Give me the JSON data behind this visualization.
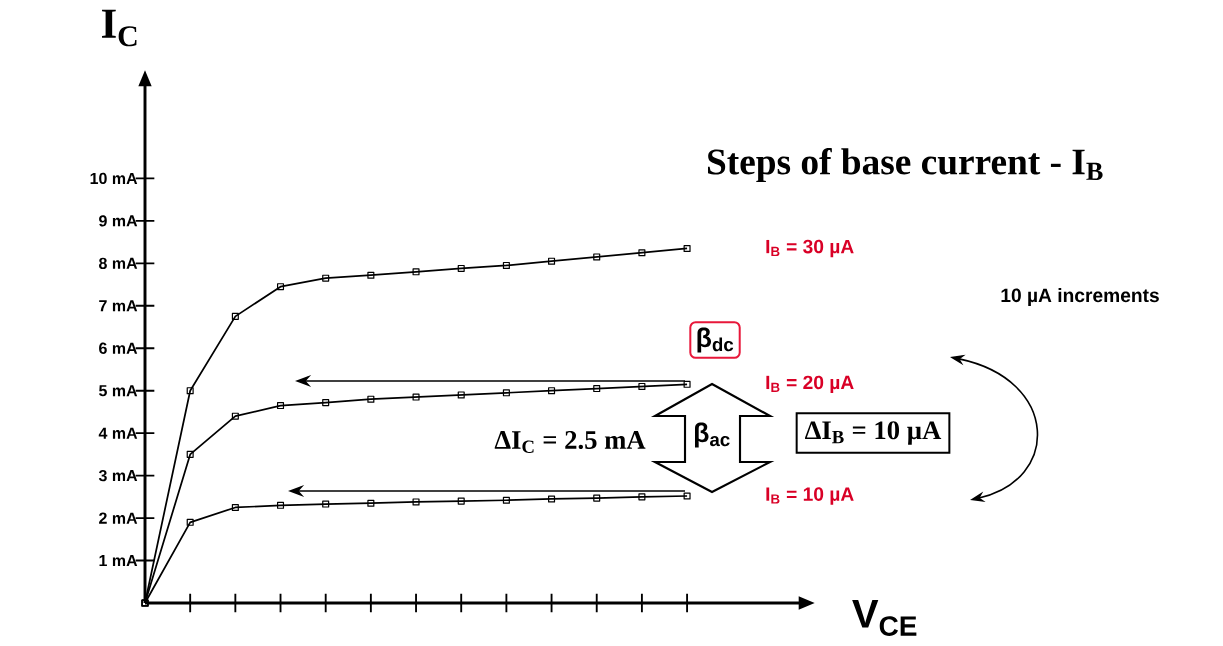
{
  "chart_data": {
    "type": "line",
    "title": "Steps  of base current - I$_{B}$",
    "xlabel": "V$_{CE}$",
    "ylabel": "I$_{C}$",
    "categories": [
      null,
      null,
      null,
      null,
      null,
      null,
      null,
      null,
      null,
      null,
      null,
      null,
      null
    ],
    "series": [
      {
        "name": "I$_{B}$ =  30 µA",
        "color": "#000000",
        "values": [
          0,
          5.0,
          6.75,
          7.45,
          7.65,
          7.72,
          7.8,
          7.88,
          7.95,
          8.05,
          8.15,
          8.25,
          8.35
        ]
      },
      {
        "name": "I$_{B}$ =  20 µA",
        "color": "#000000",
        "values": [
          0,
          3.5,
          4.4,
          4.65,
          4.72,
          4.8,
          4.85,
          4.9,
          4.95,
          5.0,
          5.05,
          5.1,
          5.15
        ]
      },
      {
        "name": "I$_{B}$ =  10 µA",
        "color": "#000000",
        "values": [
          0,
          1.9,
          2.25,
          2.3,
          2.33,
          2.35,
          2.38,
          2.4,
          2.42,
          2.45,
          2.47,
          2.5,
          2.52
        ]
      }
    ],
    "ylim": [
      0,
      12.2
    ],
    "yticks": [
      {
        "value": 1,
        "label": "1 mA"
      },
      {
        "value": 2,
        "label": "2 mA"
      },
      {
        "value": 3,
        "label": "3 mA"
      },
      {
        "value": 4,
        "label": "4 mA"
      },
      {
        "value": 5,
        "label": "5 mA"
      },
      {
        "value": 6,
        "label": "6 mA"
      },
      {
        "value": 7,
        "label": "7 mA"
      },
      {
        "value": 8,
        "label": "8 mA"
      },
      {
        "value": 9,
        "label": "9 mA"
      },
      {
        "value": 10,
        "label": "10 mA"
      }
    ],
    "tick_labels": "y",
    "marker": "square",
    "line_style": "solid",
    "annotations": [
      "10 µA  increments",
      "ΔI$_{C}$ =  2.5 mA",
      "β$_{ac}$",
      "ΔI$_{B}$ =  10 µA",
      "β$_{dc}$"
    ]
  }
}
